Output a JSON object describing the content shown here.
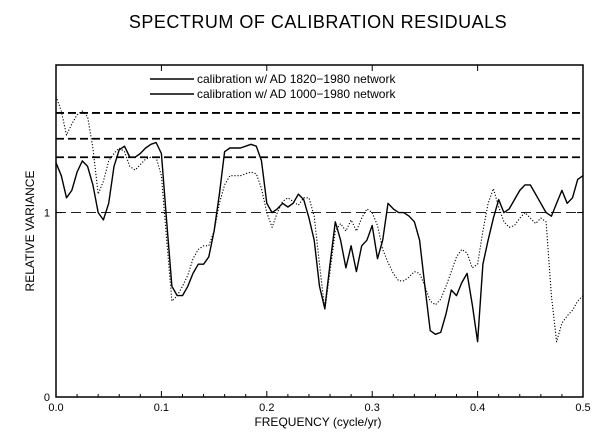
{
  "chart_data": {
    "type": "line",
    "title": "SPECTRUM OF CALIBRATION RESIDUALS",
    "xlabel": "FREQUENCY (cycle/yr)",
    "ylabel": "RELATIVE VARIANCE",
    "xlim": [
      0,
      0.5
    ],
    "ylim": [
      0,
      1.8
    ],
    "x_ticks": [
      0.0,
      0.1,
      0.2,
      0.3,
      0.4,
      0.5
    ],
    "x_tick_labels": [
      "0.0",
      "0.1",
      "0.2",
      "0.3",
      "0.4",
      "0.5"
    ],
    "y_ticks": [
      0,
      1
    ],
    "y_tick_labels": [
      "0",
      "1"
    ],
    "reference_lines": [
      {
        "y": 1.0,
        "style": "dashed-thin"
      },
      {
        "y": 1.3,
        "style": "dashed-thick"
      },
      {
        "y": 1.4,
        "style": "dashed-thick"
      },
      {
        "y": 1.54,
        "style": "dashed-thick"
      }
    ],
    "legend": {
      "position": "top-center"
    },
    "series": [
      {
        "name": "calibration w/ AD 1820−1980 network",
        "style": "dotted",
        "points": [
          [
            0.0,
            1.63
          ],
          [
            0.005,
            1.55
          ],
          [
            0.01,
            1.42
          ],
          [
            0.015,
            1.48
          ],
          [
            0.02,
            1.53
          ],
          [
            0.025,
            1.55
          ],
          [
            0.03,
            1.52
          ],
          [
            0.035,
            1.35
          ],
          [
            0.04,
            1.1
          ],
          [
            0.045,
            1.17
          ],
          [
            0.05,
            1.28
          ],
          [
            0.055,
            1.32
          ],
          [
            0.06,
            1.35
          ],
          [
            0.065,
            1.33
          ],
          [
            0.07,
            1.25
          ],
          [
            0.075,
            1.23
          ],
          [
            0.08,
            1.26
          ],
          [
            0.085,
            1.29
          ],
          [
            0.09,
            1.3
          ],
          [
            0.095,
            1.3
          ],
          [
            0.1,
            1.2
          ],
          [
            0.105,
            0.85
          ],
          [
            0.11,
            0.52
          ],
          [
            0.115,
            0.55
          ],
          [
            0.12,
            0.6
          ],
          [
            0.125,
            0.66
          ],
          [
            0.13,
            0.75
          ],
          [
            0.135,
            0.8
          ],
          [
            0.14,
            0.82
          ],
          [
            0.145,
            0.82
          ],
          [
            0.15,
            0.9
          ],
          [
            0.155,
            1.05
          ],
          [
            0.16,
            1.15
          ],
          [
            0.165,
            1.2
          ],
          [
            0.17,
            1.2
          ],
          [
            0.175,
            1.2
          ],
          [
            0.18,
            1.21
          ],
          [
            0.185,
            1.22
          ],
          [
            0.19,
            1.21
          ],
          [
            0.195,
            1.13
          ],
          [
            0.2,
            1.0
          ],
          [
            0.205,
            0.92
          ],
          [
            0.21,
            1.0
          ],
          [
            0.215,
            1.06
          ],
          [
            0.22,
            1.08
          ],
          [
            0.225,
            1.06
          ],
          [
            0.23,
            1.04
          ],
          [
            0.235,
            1.08
          ],
          [
            0.24,
            1.08
          ],
          [
            0.245,
            0.98
          ],
          [
            0.25,
            0.72
          ],
          [
            0.255,
            0.47
          ],
          [
            0.26,
            0.68
          ],
          [
            0.265,
            0.9
          ],
          [
            0.27,
            0.94
          ],
          [
            0.275,
            0.9
          ],
          [
            0.28,
            0.96
          ],
          [
            0.285,
            0.9
          ],
          [
            0.29,
            0.97
          ],
          [
            0.295,
            1.02
          ],
          [
            0.3,
            1.0
          ],
          [
            0.305,
            0.93
          ],
          [
            0.31,
            0.8
          ],
          [
            0.315,
            0.73
          ],
          [
            0.32,
            0.67
          ],
          [
            0.325,
            0.63
          ],
          [
            0.33,
            0.63
          ],
          [
            0.335,
            0.65
          ],
          [
            0.34,
            0.68
          ],
          [
            0.345,
            0.67
          ],
          [
            0.35,
            0.6
          ],
          [
            0.355,
            0.52
          ],
          [
            0.36,
            0.5
          ],
          [
            0.365,
            0.53
          ],
          [
            0.37,
            0.6
          ],
          [
            0.375,
            0.68
          ],
          [
            0.38,
            0.76
          ],
          [
            0.385,
            0.8
          ],
          [
            0.39,
            0.78
          ],
          [
            0.395,
            0.7
          ],
          [
            0.4,
            0.72
          ],
          [
            0.405,
            0.9
          ],
          [
            0.41,
            1.05
          ],
          [
            0.415,
            1.13
          ],
          [
            0.42,
            1.03
          ],
          [
            0.425,
            0.95
          ],
          [
            0.43,
            0.92
          ],
          [
            0.435,
            0.93
          ],
          [
            0.44,
            0.97
          ],
          [
            0.445,
            1.0
          ],
          [
            0.45,
            0.97
          ],
          [
            0.455,
            0.94
          ],
          [
            0.46,
            0.97
          ],
          [
            0.465,
            0.95
          ],
          [
            0.47,
            0.55
          ],
          [
            0.475,
            0.3
          ],
          [
            0.48,
            0.4
          ],
          [
            0.485,
            0.44
          ],
          [
            0.49,
            0.47
          ],
          [
            0.495,
            0.52
          ],
          [
            0.5,
            0.55
          ]
        ]
      },
      {
        "name": "calibration w/ AD 1000−1980 network",
        "style": "solid",
        "points": [
          [
            0.0,
            1.27
          ],
          [
            0.005,
            1.2
          ],
          [
            0.01,
            1.08
          ],
          [
            0.015,
            1.12
          ],
          [
            0.02,
            1.22
          ],
          [
            0.025,
            1.28
          ],
          [
            0.03,
            1.25
          ],
          [
            0.035,
            1.15
          ],
          [
            0.04,
            1.0
          ],
          [
            0.045,
            0.96
          ],
          [
            0.05,
            1.05
          ],
          [
            0.055,
            1.25
          ],
          [
            0.06,
            1.34
          ],
          [
            0.065,
            1.36
          ],
          [
            0.07,
            1.3
          ],
          [
            0.075,
            1.3
          ],
          [
            0.08,
            1.32
          ],
          [
            0.085,
            1.35
          ],
          [
            0.09,
            1.37
          ],
          [
            0.095,
            1.38
          ],
          [
            0.1,
            1.32
          ],
          [
            0.105,
            0.95
          ],
          [
            0.11,
            0.6
          ],
          [
            0.115,
            0.55
          ],
          [
            0.12,
            0.55
          ],
          [
            0.125,
            0.6
          ],
          [
            0.13,
            0.67
          ],
          [
            0.135,
            0.72
          ],
          [
            0.14,
            0.72
          ],
          [
            0.145,
            0.76
          ],
          [
            0.15,
            0.9
          ],
          [
            0.155,
            1.1
          ],
          [
            0.16,
            1.33
          ],
          [
            0.165,
            1.35
          ],
          [
            0.17,
            1.35
          ],
          [
            0.175,
            1.35
          ],
          [
            0.18,
            1.36
          ],
          [
            0.185,
            1.37
          ],
          [
            0.19,
            1.36
          ],
          [
            0.195,
            1.28
          ],
          [
            0.2,
            1.05
          ],
          [
            0.205,
            1.0
          ],
          [
            0.21,
            1.02
          ],
          [
            0.215,
            1.05
          ],
          [
            0.22,
            1.03
          ],
          [
            0.225,
            1.05
          ],
          [
            0.23,
            1.1
          ],
          [
            0.235,
            1.07
          ],
          [
            0.24,
            0.97
          ],
          [
            0.245,
            0.85
          ],
          [
            0.25,
            0.6
          ],
          [
            0.255,
            0.48
          ],
          [
            0.26,
            0.72
          ],
          [
            0.265,
            0.95
          ],
          [
            0.27,
            0.85
          ],
          [
            0.275,
            0.7
          ],
          [
            0.28,
            0.82
          ],
          [
            0.285,
            0.68
          ],
          [
            0.29,
            0.82
          ],
          [
            0.295,
            0.85
          ],
          [
            0.3,
            0.93
          ],
          [
            0.305,
            0.75
          ],
          [
            0.31,
            0.85
          ],
          [
            0.315,
            1.05
          ],
          [
            0.32,
            1.02
          ],
          [
            0.325,
            1.0
          ],
          [
            0.33,
            1.0
          ],
          [
            0.335,
            0.98
          ],
          [
            0.34,
            0.95
          ],
          [
            0.345,
            0.85
          ],
          [
            0.35,
            0.6
          ],
          [
            0.355,
            0.36
          ],
          [
            0.36,
            0.34
          ],
          [
            0.365,
            0.35
          ],
          [
            0.37,
            0.45
          ],
          [
            0.375,
            0.58
          ],
          [
            0.38,
            0.55
          ],
          [
            0.385,
            0.62
          ],
          [
            0.39,
            0.67
          ],
          [
            0.395,
            0.5
          ],
          [
            0.4,
            0.3
          ],
          [
            0.405,
            0.72
          ],
          [
            0.41,
            0.85
          ],
          [
            0.415,
            0.97
          ],
          [
            0.42,
            1.07
          ],
          [
            0.425,
            1.0
          ],
          [
            0.43,
            1.02
          ],
          [
            0.435,
            1.07
          ],
          [
            0.44,
            1.12
          ],
          [
            0.445,
            1.15
          ],
          [
            0.45,
            1.15
          ],
          [
            0.455,
            1.1
          ],
          [
            0.46,
            1.05
          ],
          [
            0.465,
            1.0
          ],
          [
            0.47,
            0.98
          ],
          [
            0.475,
            1.05
          ],
          [
            0.48,
            1.12
          ],
          [
            0.485,
            1.05
          ],
          [
            0.49,
            1.08
          ],
          [
            0.495,
            1.18
          ],
          [
            0.5,
            1.2
          ]
        ]
      }
    ]
  }
}
